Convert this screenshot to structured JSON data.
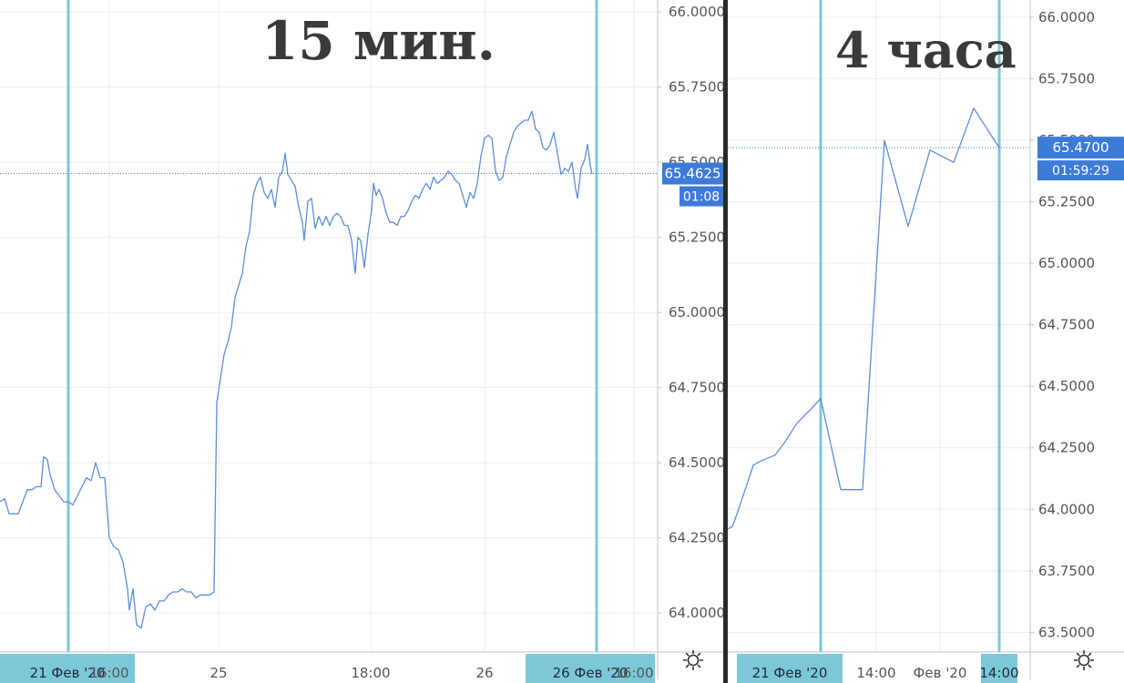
{
  "colors": {
    "line": "#5b8fd9",
    "grid": "#e8eef3",
    "marker": "#7cc8d9",
    "badge": "#3d7bd8",
    "axis_text": "#555555",
    "badge_text": "#ffffff"
  },
  "chart_data": [
    {
      "type": "line",
      "title": "15 мин.",
      "series": [
        {
          "values": [
            [
              0,
              64.37
            ],
            [
              5,
              64.38
            ],
            [
              10,
              64.33
            ],
            [
              15,
              64.33
            ],
            [
              20,
              64.33
            ],
            [
              25,
              64.37
            ],
            [
              30,
              64.41
            ],
            [
              35,
              64.41
            ],
            [
              40,
              64.42
            ],
            [
              45,
              64.42
            ],
            [
              48,
              64.52
            ],
            [
              52,
              64.51
            ],
            [
              55,
              64.46
            ],
            [
              60,
              64.41
            ],
            [
              65,
              64.39
            ],
            [
              70,
              64.37
            ],
            [
              75,
              64.37
            ],
            [
              80,
              64.36
            ],
            [
              85,
              64.39
            ],
            [
              90,
              64.42
            ],
            [
              95,
              64.45
            ],
            [
              100,
              64.44
            ],
            [
              105,
              64.5
            ],
            [
              110,
              64.45
            ],
            [
              115,
              64.45
            ],
            [
              120,
              64.25
            ],
            [
              125,
              64.22
            ],
            [
              130,
              64.21
            ],
            [
              135,
              64.17
            ],
            [
              140,
              64.08
            ],
            [
              142,
              64.01
            ],
            [
              146,
              64.08
            ],
            [
              150,
              63.96
            ],
            [
              155,
              63.95
            ],
            [
              160,
              64.02
            ],
            [
              165,
              64.03
            ],
            [
              170,
              64.01
            ],
            [
              175,
              64.04
            ],
            [
              180,
              64.04
            ],
            [
              185,
              64.06
            ],
            [
              190,
              64.07
            ],
            [
              195,
              64.07
            ],
            [
              200,
              64.08
            ],
            [
              205,
              64.07
            ],
            [
              210,
              64.07
            ],
            [
              215,
              64.05
            ],
            [
              220,
              64.06
            ],
            [
              225,
              64.06
            ],
            [
              230,
              64.06
            ],
            [
              235,
              64.07
            ],
            [
              238,
              64.7
            ],
            [
              242,
              64.78
            ],
            [
              246,
              64.86
            ],
            [
              250,
              64.9
            ],
            [
              254,
              64.95
            ],
            [
              258,
              65.05
            ],
            [
              262,
              65.09
            ],
            [
              266,
              65.13
            ],
            [
              270,
              65.22
            ],
            [
              274,
              65.27
            ],
            [
              278,
              65.39
            ],
            [
              282,
              65.43
            ],
            [
              286,
              65.45
            ],
            [
              290,
              65.4
            ],
            [
              294,
              65.38
            ],
            [
              298,
              65.41
            ],
            [
              302,
              65.35
            ],
            [
              306,
              65.45
            ],
            [
              310,
              65.47
            ],
            [
              313,
              65.53
            ],
            [
              316,
              65.46
            ],
            [
              320,
              65.44
            ],
            [
              324,
              65.42
            ],
            [
              328,
              65.35
            ],
            [
              332,
              65.3
            ],
            [
              334,
              65.24
            ],
            [
              338,
              65.37
            ],
            [
              342,
              65.38
            ],
            [
              346,
              65.28
            ],
            [
              350,
              65.32
            ],
            [
              354,
              65.29
            ],
            [
              358,
              65.32
            ],
            [
              362,
              65.29
            ],
            [
              366,
              65.32
            ],
            [
              370,
              65.33
            ],
            [
              374,
              65.32
            ],
            [
              378,
              65.29
            ],
            [
              382,
              65.29
            ],
            [
              386,
              65.24
            ],
            [
              390,
              65.13
            ],
            [
              393,
              65.25
            ],
            [
              396,
              65.24
            ],
            [
              400,
              65.15
            ],
            [
              404,
              65.26
            ],
            [
              408,
              65.34
            ],
            [
              410,
              65.43
            ],
            [
              413,
              65.39
            ],
            [
              416,
              65.41
            ],
            [
              420,
              65.38
            ],
            [
              424,
              65.33
            ],
            [
              428,
              65.3
            ],
            [
              432,
              65.3
            ],
            [
              436,
              65.29
            ],
            [
              440,
              65.32
            ],
            [
              444,
              65.32
            ],
            [
              448,
              65.34
            ],
            [
              452,
              65.37
            ],
            [
              456,
              65.39
            ],
            [
              460,
              65.38
            ],
            [
              464,
              65.41
            ],
            [
              468,
              65.43
            ],
            [
              472,
              65.41
            ],
            [
              476,
              65.45
            ],
            [
              480,
              65.43
            ],
            [
              484,
              65.44
            ],
            [
              488,
              65.45
            ],
            [
              492,
              65.47
            ],
            [
              496,
              65.46
            ],
            [
              500,
              65.44
            ],
            [
              504,
              65.43
            ],
            [
              508,
              65.39
            ],
            [
              512,
              65.35
            ],
            [
              516,
              65.4
            ],
            [
              520,
              65.38
            ],
            [
              524,
              65.43
            ],
            [
              528,
              65.52
            ],
            [
              532,
              65.58
            ],
            [
              536,
              65.59
            ],
            [
              540,
              65.58
            ],
            [
              544,
              65.47
            ],
            [
              548,
              65.44
            ],
            [
              552,
              65.45
            ],
            [
              556,
              65.52
            ],
            [
              560,
              65.56
            ],
            [
              564,
              65.6
            ],
            [
              568,
              65.62
            ],
            [
              572,
              65.63
            ],
            [
              576,
              65.64
            ],
            [
              580,
              65.64
            ],
            [
              584,
              65.67
            ],
            [
              588,
              65.61
            ],
            [
              592,
              65.6
            ],
            [
              596,
              65.55
            ],
            [
              600,
              65.54
            ],
            [
              604,
              65.56
            ],
            [
              608,
              65.6
            ],
            [
              612,
              65.53
            ],
            [
              616,
              65.46
            ],
            [
              620,
              65.48
            ],
            [
              624,
              65.47
            ],
            [
              628,
              65.5
            ],
            [
              632,
              65.41
            ],
            [
              634,
              65.38
            ],
            [
              638,
              65.48
            ],
            [
              642,
              65.51
            ],
            [
              645,
              65.56
            ],
            [
              648,
              65.49
            ],
            [
              650,
              65.46
            ]
          ]
        }
      ],
      "x_labels": [
        {
          "label": "21 Фев '20",
          "x": 75,
          "type": "marker"
        },
        {
          "label": "16:00",
          "x": 120,
          "type": "tick"
        },
        {
          "label": "25",
          "x": 240,
          "type": "tick"
        },
        {
          "label": "18:00",
          "x": 407,
          "type": "tick"
        },
        {
          "label": "26",
          "x": 532,
          "type": "tick"
        },
        {
          "label": "26 Фев '20",
          "x": 655,
          "type": "marker"
        },
        {
          "label": "16:00",
          "x": 696,
          "type": "tick"
        }
      ],
      "y_ticks": [
        "66.0000",
        "65.7500",
        "65.5000",
        "65.2500",
        "65.0000",
        "64.7500",
        "64.5000",
        "64.2500",
        "64.0000"
      ],
      "y_ticks_values": [
        66,
        65.75,
        65.5,
        65.25,
        65,
        64.75,
        64.5,
        64.25,
        64
      ],
      "ylim": [
        63.87,
        66.04
      ],
      "xlim": [
        0,
        722
      ],
      "current_price": {
        "value": 65.4625,
        "label": "65.4625",
        "timer": "01:08"
      },
      "vertical_markers_x": [
        75,
        655
      ],
      "grid": true
    },
    {
      "type": "line",
      "title": "4 часа",
      "series": [
        {
          "values": [
            [
              0,
              63.92
            ],
            [
              5,
              63.93
            ],
            [
              10,
              63.98
            ],
            [
              20,
              64.09
            ],
            [
              28,
              64.18
            ],
            [
              38,
              64.2
            ],
            [
              52,
              64.22
            ],
            [
              62,
              64.27
            ],
            [
              76,
              64.35
            ],
            [
              92,
              64.41
            ],
            [
              102,
              64.45
            ],
            [
              124,
              64.08
            ],
            [
              148,
              64.08
            ],
            [
              172,
              65.5
            ],
            [
              198,
              65.15
            ],
            [
              222,
              65.46
            ],
            [
              248,
              65.41
            ],
            [
              270,
              65.63
            ],
            [
              298,
              65.47
            ]
          ]
        }
      ],
      "x_labels": [
        {
          "label": "21 Фев '20",
          "x": 102,
          "type": "marker"
        },
        {
          "label": "14:00",
          "x": 163,
          "type": "tick"
        },
        {
          "label": "Фев '20",
          "x": 233,
          "type": "tick"
        },
        {
          "label": "14:00",
          "x": 298,
          "type": "marker"
        }
      ],
      "y_ticks": [
        "66.0000",
        "65.7500",
        "65.5000",
        "65.2500",
        "65.0000",
        "64.7500",
        "64.5000",
        "64.2500",
        "64.0000",
        "63.7500",
        "63.5000"
      ],
      "y_ticks_values": [
        66,
        65.75,
        65.5,
        65.25,
        65,
        64.75,
        64.5,
        64.25,
        64,
        63.75,
        63.5
      ],
      "ylim": [
        63.42,
        66.07
      ],
      "xlim": [
        0,
        332
      ],
      "current_price": {
        "value": 65.47,
        "label": "65.4700",
        "timer": "01:59:29"
      },
      "vertical_markers_x": [
        102,
        298
      ],
      "grid": true
    }
  ]
}
